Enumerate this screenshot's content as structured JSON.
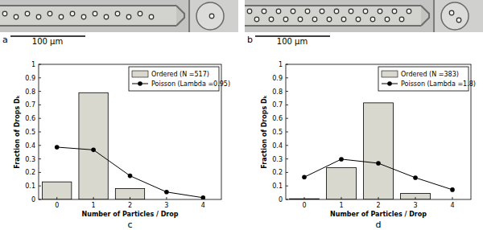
{
  "images": [
    {
      "label": "a",
      "scale_bar": "100 µm"
    },
    {
      "label": "b",
      "scale_bar": "100 µm"
    }
  ],
  "chart_data": [
    {
      "type": "bar",
      "panel_label": "c",
      "x_label": "Number of Particles / Drop",
      "y_label": "Fraction of Drops Dₖ",
      "categories": [
        "0",
        "1",
        "2",
        "3",
        "4"
      ],
      "series": [
        {
          "name": "Ordered (N =517)",
          "type": "bar",
          "color": "#d9d8cf",
          "values": [
            0.13,
            0.79,
            0.08,
            0.0,
            0.0
          ]
        },
        {
          "name": "Poisson (Lambda =0.95)",
          "type": "line",
          "color": "#000000",
          "marker": "circle",
          "values": [
            0.387,
            0.367,
            0.175,
            0.055,
            0.013
          ]
        }
      ],
      "ylim": [
        0,
        1
      ],
      "yticks": [
        0,
        0.1,
        0.2,
        0.3,
        0.4,
        0.5,
        0.6,
        0.7,
        0.8,
        0.9,
        1
      ],
      "legend": "northeast",
      "grid": false
    },
    {
      "type": "bar",
      "panel_label": "d",
      "x_label": "Number of Particles / Drop",
      "y_label": "Fraction of Drops Dₖ",
      "categories": [
        "0",
        "1",
        "2",
        "3",
        "4"
      ],
      "series": [
        {
          "name": "Ordered (N =383)",
          "type": "bar",
          "color": "#d9d8cf",
          "values": [
            0.005,
            0.235,
            0.715,
            0.045,
            0.0
          ]
        },
        {
          "name": "Poisson (Lambda =1.8)",
          "type": "line",
          "color": "#000000",
          "marker": "circle",
          "values": [
            0.165,
            0.298,
            0.268,
            0.161,
            0.072
          ]
        }
      ],
      "ylim": [
        0,
        1
      ],
      "yticks": [
        0,
        0.1,
        0.2,
        0.3,
        0.4,
        0.5,
        0.6,
        0.7,
        0.8,
        0.9,
        1
      ],
      "legend": "northeast",
      "grid": false
    }
  ]
}
